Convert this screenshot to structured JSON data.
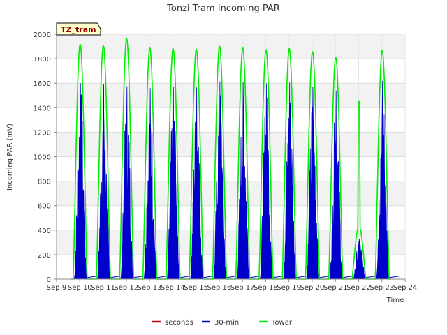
{
  "chart_data": {
    "type": "line",
    "title": "Tonzi Tram Incoming PAR",
    "xlabel": "Time",
    "ylabel": "Incoming PAR (mV)",
    "badge": "TZ_tram",
    "ylim": [
      0,
      2000
    ],
    "yticks": [
      0,
      200,
      400,
      600,
      800,
      1000,
      1200,
      1400,
      1600,
      1800,
      2000
    ],
    "xlim": [
      "Sep 9",
      "Sep 24"
    ],
    "x_ticks": [
      "Sep 9",
      "Sep 10",
      "Sep 11",
      "Sep 12",
      "Sep 13",
      "Sep 14",
      "Sep 15",
      "Sep 16",
      "Sep 17",
      "Sep 18",
      "Sep 19",
      "Sep 20",
      "Sep 21",
      "Sep 22",
      "Sep 23",
      "Sep 24"
    ],
    "grid": true,
    "legend_position": "bottom",
    "series": [
      {
        "name": "seconds",
        "color": "#cc0000",
        "daily_peaks": []
      },
      {
        "name": "30-min",
        "color": "#0000cc",
        "days": [
          "Sep 9",
          "Sep 10",
          "Sep 11",
          "Sep 12",
          "Sep 13",
          "Sep 14",
          "Sep 15",
          "Sep 16",
          "Sep 17",
          "Sep 18",
          "Sep 19",
          "Sep 20",
          "Sep 21",
          "Sep 22",
          "Sep 23"
        ],
        "daily_peaks": [
          1600,
          1590,
          1575,
          1560,
          1570,
          1565,
          1615,
          1610,
          1600,
          1605,
          1570,
          1540,
          330,
          1620
        ],
        "peak_days": [
          "Sep 9",
          "Sep 10",
          "Sep 11",
          "Sep 12",
          "Sep 13",
          "Sep 14",
          "Sep 15",
          "Sep 16",
          "Sep 17",
          "Sep 18",
          "Sep 19",
          "Sep 20",
          "Sep 21",
          "Sep 22"
        ]
      },
      {
        "name": "Tower",
        "color": "#00ee00",
        "peak_days": [
          "Sep 9",
          "Sep 10",
          "Sep 11",
          "Sep 12",
          "Sep 13",
          "Sep 14",
          "Sep 15",
          "Sep 16",
          "Sep 17",
          "Sep 18",
          "Sep 19",
          "Sep 20",
          "Sep 21",
          "Sep 22"
        ],
        "daily_peaks": [
          1920,
          1910,
          1970,
          1890,
          1885,
          1880,
          1905,
          1890,
          1875,
          1885,
          1860,
          1815,
          1450,
          1870
        ]
      }
    ]
  }
}
